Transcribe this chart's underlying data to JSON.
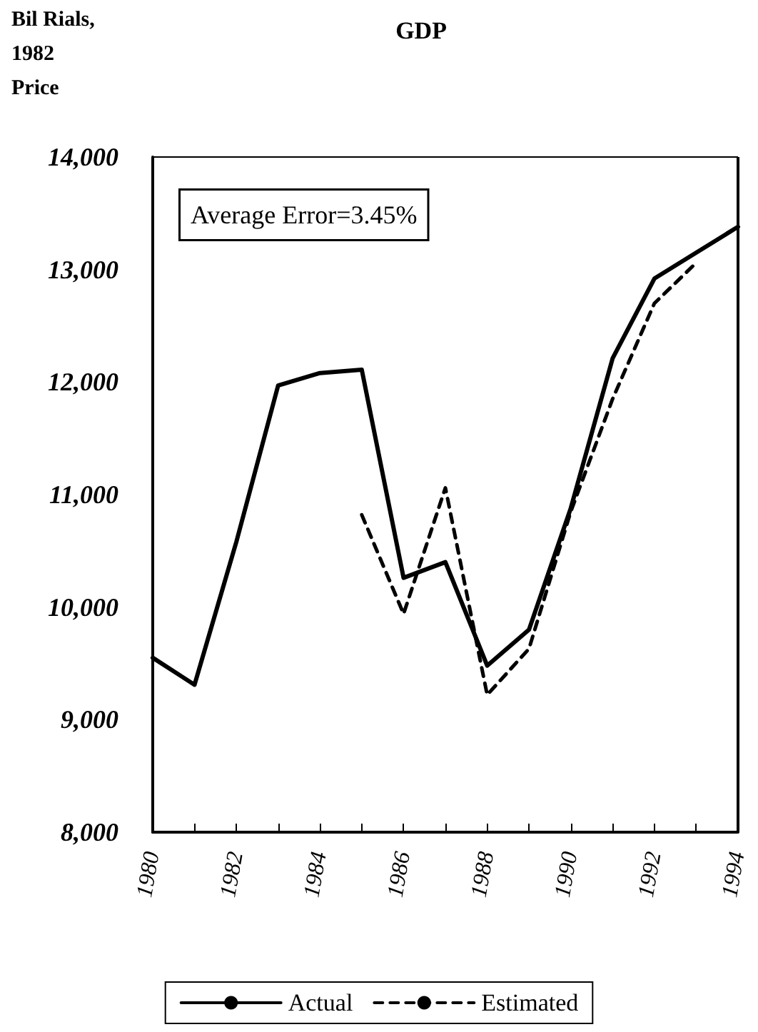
{
  "chart_data": {
    "type": "line",
    "title": "GDP",
    "ylabel": "Bil Rials, 1982 Price",
    "annotations": [
      "Average Error=3.45%"
    ],
    "x": [
      1980,
      1981,
      1982,
      1983,
      1984,
      1985,
      1986,
      1987,
      1988,
      1989,
      1990,
      1991,
      1992,
      1993,
      1994
    ],
    "series": [
      {
        "name": "Actual",
        "color": "#000000",
        "line_style": "solid",
        "values": [
          9550,
          9310,
          10580,
          11970,
          12080,
          12110,
          10260,
          10400,
          9480,
          9800,
          10880,
          12210,
          12920,
          13150,
          13380
        ]
      },
      {
        "name": "Estimated",
        "color": "#000000",
        "line_style": "dashed",
        "values": [
          null,
          null,
          null,
          null,
          null,
          10820,
          9940,
          11060,
          9220,
          9630,
          10850,
          11850,
          12700,
          13060,
          null
        ]
      }
    ],
    "xlim": [
      1980,
      1994
    ],
    "xticks": [
      1980,
      {
        "value": 1981,
        "label": null
      },
      1982,
      {
        "value": 1983,
        "label": null
      },
      1984,
      {
        "value": 1985,
        "label": null
      },
      1986,
      {
        "value": 1987,
        "label": null
      },
      1988,
      {
        "value": 1989,
        "label": null
      },
      1990,
      {
        "value": 1991,
        "label": null
      },
      1992,
      {
        "value": 1993,
        "label": null
      },
      1994
    ],
    "ylim": [
      8000,
      14000
    ],
    "yticks": [
      {
        "value": 8000,
        "label": "8,000"
      },
      {
        "value": 9000,
        "label": "9,000"
      },
      {
        "value": 10000,
        "label": "10,000"
      },
      {
        "value": 11000,
        "label": "11,000"
      },
      {
        "value": 12000,
        "label": "12,000"
      },
      {
        "value": 13000,
        "label": "13,000"
      },
      {
        "value": 14000,
        "label": "14,000"
      }
    ],
    "grid": false,
    "legend": "bottom",
    "marker": "none"
  }
}
